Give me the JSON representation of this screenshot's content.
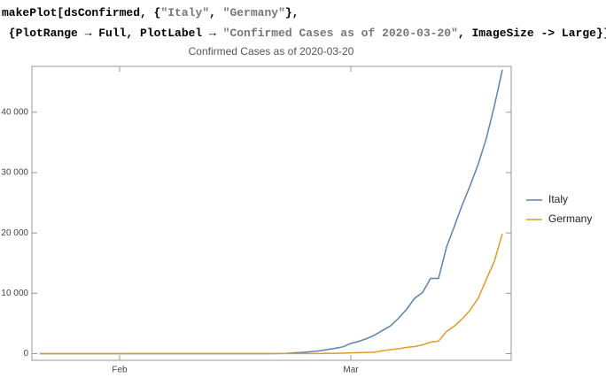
{
  "code": {
    "lines": [
      [
        "makePlot[dsConfirmed, {",
        "\"Italy\"",
        ", ",
        "\"Germany\"",
        "},"
      ],
      [
        " {PlotRange → Full, PlotLabel → ",
        "\"Confirmed Cases as of 2020-03-20\"",
        ", ImageSize -> Large}]"
      ]
    ]
  },
  "chart_data": {
    "type": "line",
    "title": "Confirmed Cases as of 2020-03-20",
    "categories": [
      null,
      null,
      null,
      null,
      null,
      null,
      null,
      null,
      null,
      null,
      "Feb",
      null,
      null,
      null,
      null,
      null,
      null,
      null,
      null,
      null,
      null,
      null,
      null,
      null,
      null,
      null,
      null,
      null,
      null,
      null,
      null,
      null,
      null,
      null,
      null,
      null,
      null,
      null,
      null,
      "Mar",
      null,
      null,
      null,
      null,
      null,
      null,
      null,
      null,
      null,
      null,
      null,
      null,
      null,
      null,
      null,
      null,
      null,
      null,
      null
    ],
    "series": [
      {
        "name": "Italy",
        "color": "#5e81b5",
        "values": [
          0,
          0,
          0,
          0,
          0,
          0,
          0,
          0,
          0,
          2,
          2,
          2,
          2,
          2,
          2,
          2,
          3,
          3,
          3,
          3,
          3,
          3,
          3,
          3,
          3,
          3,
          3,
          3,
          3,
          3,
          20,
          62,
          155,
          229,
          322,
          453,
          655,
          888,
          1128,
          1694,
          2036,
          2502,
          3089,
          3858,
          4636,
          5883,
          7375,
          9172,
          10149,
          12462,
          12462,
          17660,
          21157,
          24747,
          27980,
          31506,
          35713,
          41035,
          47021
        ]
      },
      {
        "name": "Germany",
        "color": "#e19c24",
        "values": [
          0,
          0,
          0,
          0,
          0,
          1,
          4,
          4,
          4,
          5,
          8,
          10,
          12,
          12,
          12,
          12,
          13,
          13,
          14,
          14,
          16,
          16,
          16,
          16,
          16,
          16,
          16,
          16,
          16,
          16,
          16,
          16,
          16,
          16,
          17,
          27,
          46,
          48,
          79,
          130,
          159,
          196,
          262,
          482,
          670,
          799,
          1040,
          1176,
          1457,
          1908,
          2078,
          3675,
          4585,
          5795,
          7272,
          9257,
          12327,
          15320,
          19848
        ]
      }
    ],
    "ylim": [
      -1100,
      47600
    ],
    "yticks": [
      0,
      {
        "value": 10000,
        "label": "10 000"
      },
      {
        "value": 20000,
        "label": "20 000"
      },
      {
        "value": 30000,
        "label": "30 000"
      },
      {
        "value": 40000,
        "label": "40 000"
      }
    ],
    "legend": "right"
  }
}
